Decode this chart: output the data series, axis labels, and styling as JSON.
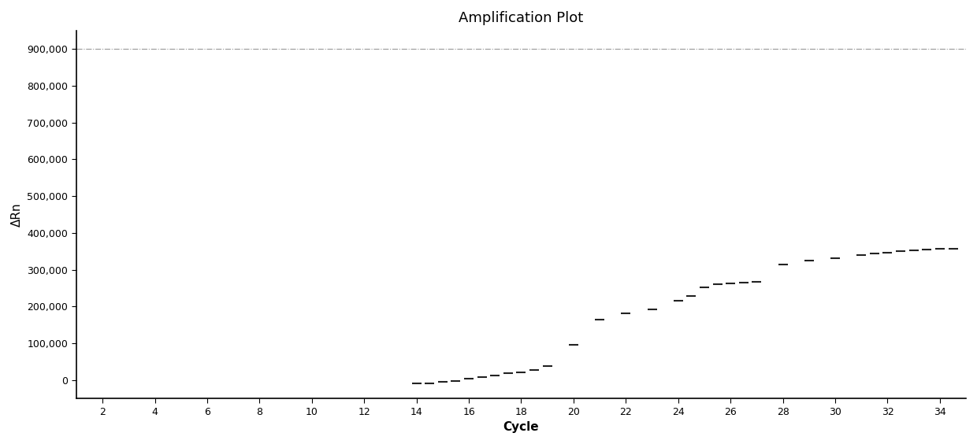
{
  "title": "Amplification Plot",
  "xlabel": "Cycle",
  "ylabel": "ΔRn",
  "xlim": [
    1,
    35
  ],
  "ylim": [
    -50000,
    950000
  ],
  "xticks": [
    2,
    4,
    6,
    8,
    10,
    12,
    14,
    16,
    18,
    20,
    22,
    24,
    26,
    28,
    30,
    32,
    34
  ],
  "yticks": [
    0,
    100000,
    200000,
    300000,
    400000,
    500000,
    600000,
    700000,
    800000,
    900000
  ],
  "hline_y": 900000,
  "hline_color": "#999999",
  "hline_style": "-.",
  "curve_color": "#222222",
  "background_color": "#ffffff",
  "curve_x": [
    14.0,
    14.5,
    15.0,
    15.5,
    16.0,
    16.5,
    17.0,
    17.5,
    18.0,
    18.5,
    19.0,
    20.0,
    21.0,
    22.0,
    23.0,
    24.0,
    24.5,
    25.0,
    25.5,
    26.0,
    26.5,
    27.0,
    28.0,
    29.0,
    30.0,
    31.0,
    31.5,
    32.0,
    32.5,
    33.0,
    33.5,
    34.0,
    34.5
  ],
  "curve_y": [
    -8000,
    -9000,
    -5000,
    -2000,
    3000,
    8000,
    12000,
    18000,
    22000,
    28000,
    38000,
    95000,
    165000,
    182000,
    193000,
    215000,
    228000,
    252000,
    260000,
    263000,
    265000,
    268000,
    315000,
    325000,
    332000,
    340000,
    344000,
    346000,
    350000,
    352000,
    354000,
    356000,
    358000
  ]
}
